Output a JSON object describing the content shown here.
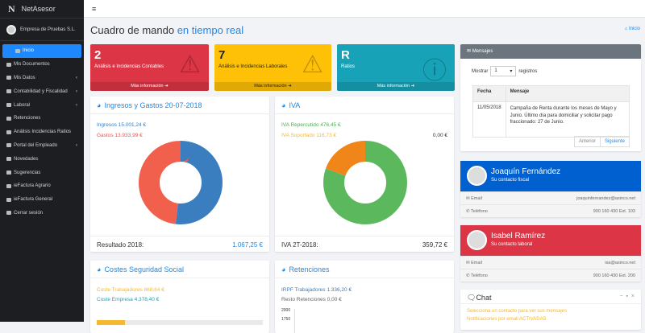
{
  "brand": {
    "logo": "N",
    "name": "NetAsesor"
  },
  "company": "Empresa de Pruebas S.L.",
  "menu": [
    {
      "label": "Inicio",
      "active": true
    },
    {
      "label": "Mis Documentos"
    },
    {
      "label": "Mis Datos",
      "sub": true
    },
    {
      "label": "Contabilidad y Fiscalidad",
      "sub": true
    },
    {
      "label": "Laboral",
      "sub": true
    },
    {
      "label": "Retenciones"
    },
    {
      "label": "Análisis Incidencias Ratios"
    },
    {
      "label": "Portal del Empleado",
      "sub": true
    },
    {
      "label": "Novedades"
    },
    {
      "label": "Sugerencias"
    },
    {
      "label": "ieFactura Agrario"
    },
    {
      "label": "ieFactura General"
    },
    {
      "label": "Cerrar sesión"
    }
  ],
  "chevron": "‹",
  "hamburger": "≡",
  "title": {
    "main": "Cuadro de mando",
    "accent": "en tiempo real"
  },
  "breadcrumb": "Inicio",
  "boxes": [
    {
      "num": "2",
      "label": "Análisis e Incidencias Contables",
      "more": "Más información",
      "color": "#dc3545"
    },
    {
      "num": "7",
      "label": "Análisis e Incidencias Laborales",
      "more": "Más información",
      "color": "#ffc107"
    },
    {
      "num": "R",
      "label": "Ratios",
      "more": "Más información",
      "color": "#17a2b8"
    }
  ],
  "ingresos": {
    "title": "Ingresos y Gastos 20-07-2018",
    "ingresos": "Ingresos 15.001,24 €",
    "gastos": "Gastos 13.933,99 €",
    "result_label": "Resultado 2018:",
    "result": "1.067,25 €",
    "chart_data": {
      "type": "pie",
      "labels": [
        "Ingresos",
        "Gastos"
      ],
      "values": [
        15001.24,
        13933.99
      ],
      "colors": [
        "#3a7ebf",
        "#f0604d"
      ]
    }
  },
  "iva": {
    "title": "IVA",
    "repercutido": "IVA Repercutido 476,45 €",
    "soportado": "IVA Soportado 116,73 €",
    "other": "0,00 €",
    "result_label": "IVA 2T-2018:",
    "result": "359,72 €",
    "chart_data": {
      "type": "pie",
      "labels": [
        "IVA Repercutido",
        "IVA Soportado"
      ],
      "values": [
        476.45,
        116.73
      ],
      "colors": [
        "#5cb85c",
        "#f0861a"
      ]
    }
  },
  "costes": {
    "title": "Costes Seguridad Social",
    "trabajadores": "Coste Trabajadores 868,64 €",
    "empresa": "Coste Empresa 4.378,40 €",
    "progress": 0.17
  },
  "retenciones": {
    "title": "Retenciones",
    "irpf": "IRPF Trabajadores 1.336,20 €",
    "resto": "Resto Retenciones 0,00 €",
    "ticks": [
      "2000",
      "1750"
    ]
  },
  "mensajes": {
    "title": "Mensajes",
    "show": "Mostrar",
    "entries": "1",
    "records": "registros",
    "headers": [
      "Fecha",
      "Mensaje"
    ],
    "rows": [
      {
        "fecha": "11/05/2018",
        "mensaje": "Campaña de Renta durante los meses de Mayo y Junio. Último día para domiciliar y solicitar pago fraccionado: 27 de Junio."
      }
    ],
    "prev": "Anterior",
    "next": "Siguiente"
  },
  "contacts": [
    {
      "name": "Joaquín Fernández",
      "role": "Su contacto fiscal",
      "email_label": "Email",
      "email": "joaquinfernandez@asinco.net",
      "phone_label": "Teléfono",
      "phone": "900 160 430 Ext. 103",
      "color": "#0060d0"
    },
    {
      "name": "Isabel Ramírez",
      "role": "Su contacto laboral",
      "email_label": "Email",
      "email": "isa@asinco.net",
      "phone_label": "Teléfono",
      "phone": "900 160 430 Ext. 200",
      "color": "#dc3545"
    }
  ],
  "chat": {
    "title": "Chat",
    "lines": [
      "Selecciona un contacto para ver sus mensajes",
      "Notificaciones por email ACTIVADAS"
    ]
  }
}
